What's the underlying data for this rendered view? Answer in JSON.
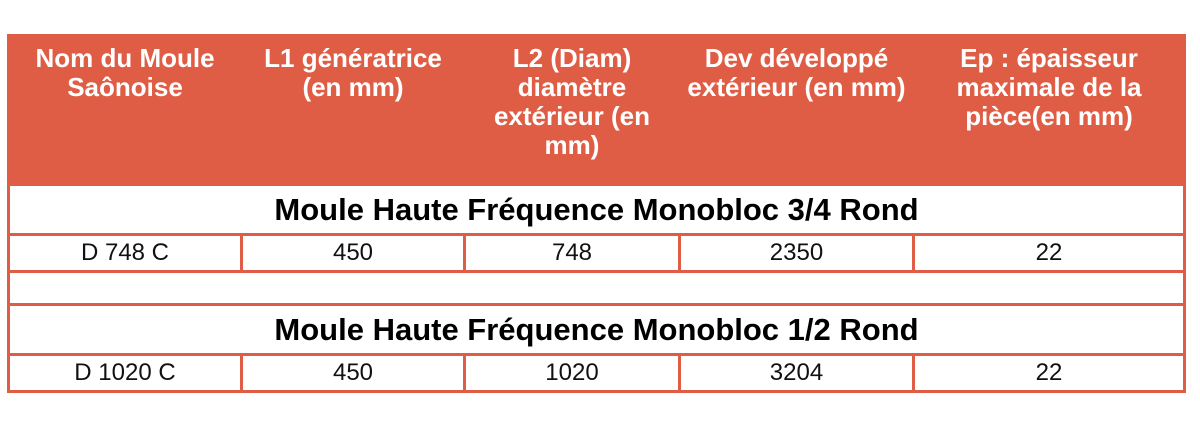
{
  "table": {
    "headers": [
      "Nom du Moule Saônoise",
      "L1 génératrice (en mm)",
      "L2 (Diam) diamètre extérieur (en mm)",
      "Dev développé extérieur (en mm)",
      "Ep : épaisseur maximale de la pièce(en mm)"
    ],
    "sections": [
      {
        "title": "Moule Haute Fréquence Monobloc 3/4 Rond",
        "row": [
          "D 748 C",
          "450",
          "748",
          "2350",
          "22"
        ]
      },
      {
        "title": "Moule Haute Fréquence Monobloc 1/2 Rond",
        "row": [
          "D 1020 C",
          "450",
          "1020",
          "3204",
          "22"
        ]
      }
    ]
  },
  "colors": {
    "header_bg": "#e05d45",
    "header_text": "#ffffff",
    "border": "#e05d45"
  }
}
